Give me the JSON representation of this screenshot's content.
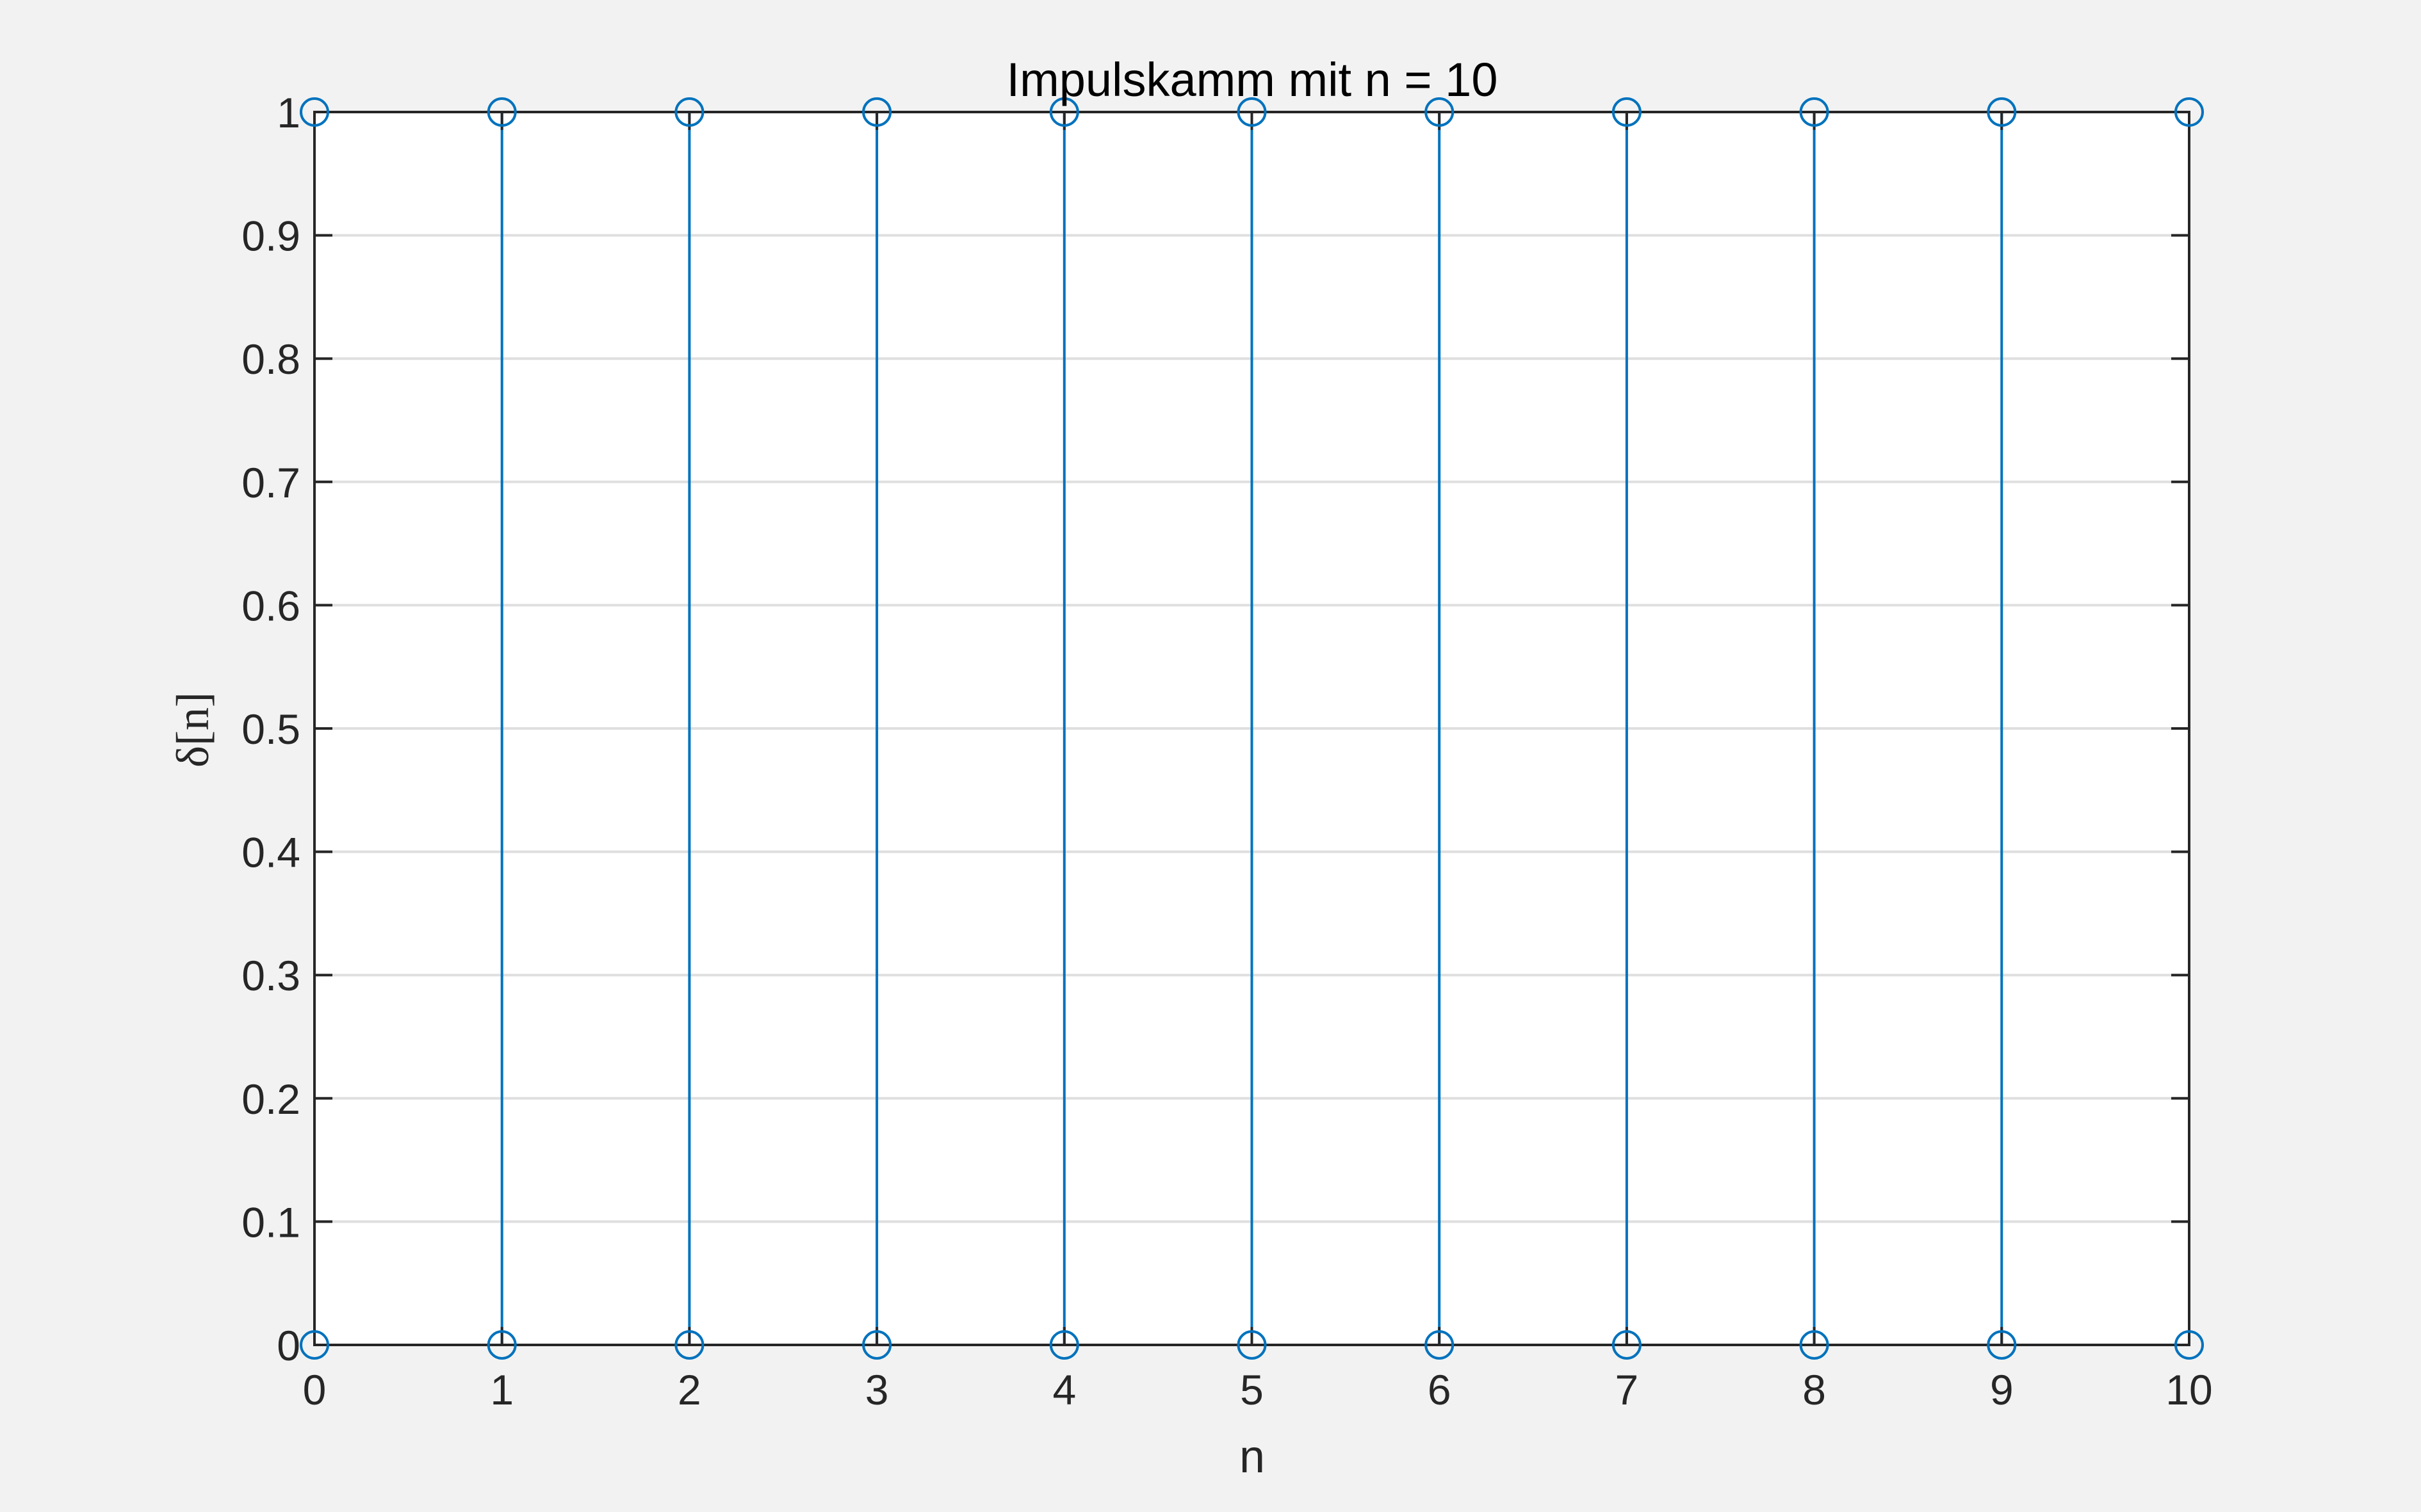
{
  "chart_data": {
    "type": "stem",
    "title": "Impulskamm mit n = 10",
    "xlabel": "n",
    "ylabel": "δ[n]",
    "x": [
      0,
      1,
      2,
      3,
      4,
      5,
      6,
      7,
      8,
      9,
      10
    ],
    "series": [
      {
        "values": [
          1,
          1,
          1,
          1,
          1,
          1,
          1,
          1,
          1,
          1,
          1
        ],
        "marker": "circle"
      },
      {
        "values": [
          0,
          0,
          0,
          0,
          0,
          0,
          0,
          0,
          0,
          0,
          0
        ],
        "marker": "circle"
      }
    ],
    "xlim": [
      0,
      10
    ],
    "ylim": [
      0,
      1
    ],
    "xticks": [
      "0",
      "1",
      "2",
      "3",
      "4",
      "5",
      "6",
      "7",
      "8",
      "9",
      "10"
    ],
    "yticks": [
      "0",
      "0.1",
      "0.2",
      "0.3",
      "0.4",
      "0.5",
      "0.6",
      "0.7",
      "0.8",
      "0.9",
      "1"
    ],
    "grid": "horizontal",
    "colors": {
      "series": "#0072bd",
      "grid": "#dfdfdf",
      "axes": "#262626",
      "figure_background": "#f2f2f2",
      "axes_background": "#ffffff"
    }
  }
}
